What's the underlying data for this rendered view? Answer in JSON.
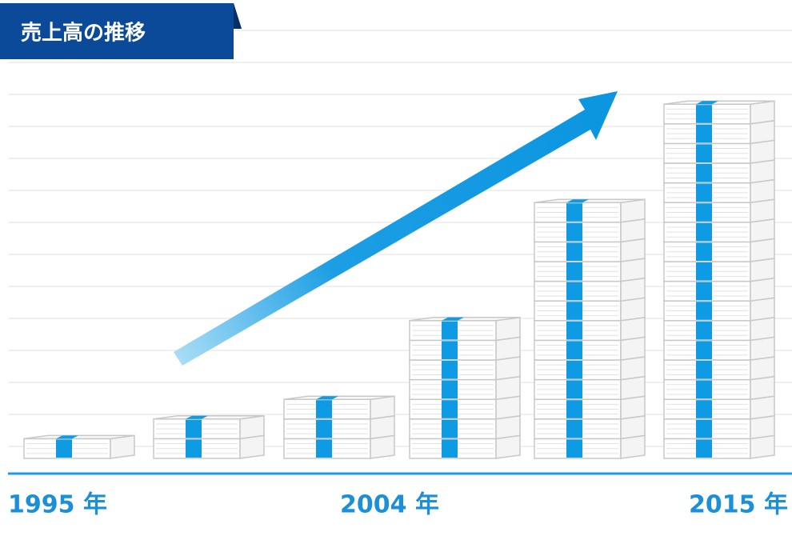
{
  "chart_data": {
    "type": "stack",
    "title": "売上高の推移",
    "values": [
      1,
      2,
      3,
      7,
      13,
      18
    ],
    "axis_labels": [
      "1995 年",
      "2004 年",
      "2015 年"
    ],
    "color": "#0e9be3"
  }
}
